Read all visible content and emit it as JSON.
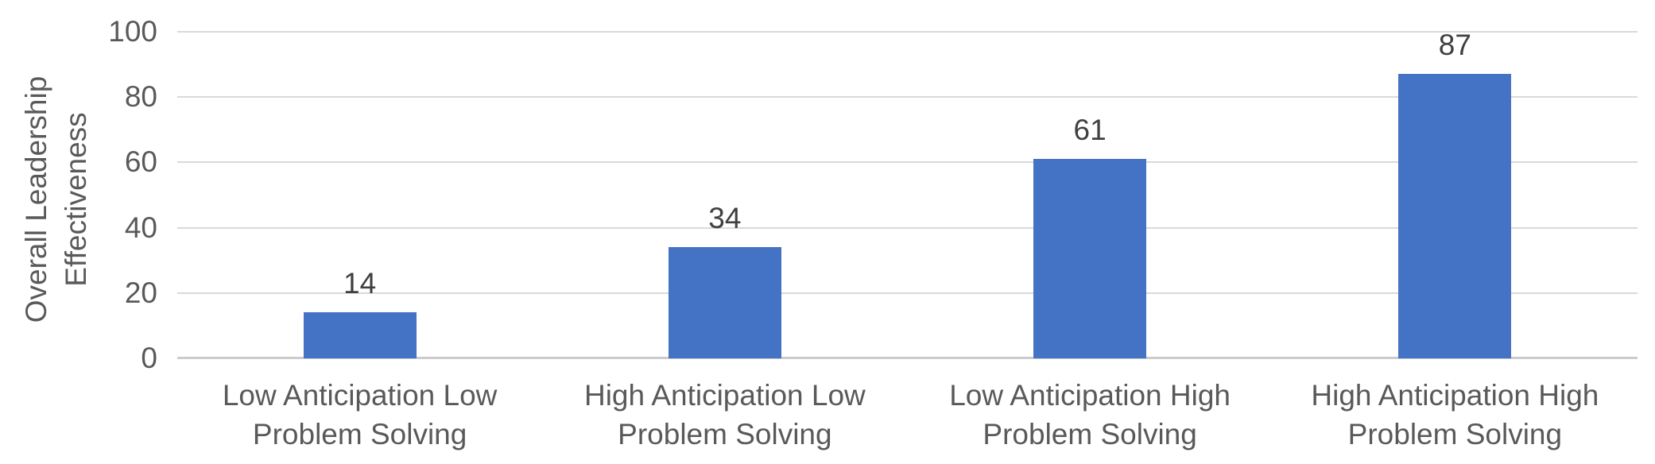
{
  "chart_data": {
    "type": "bar",
    "title": "",
    "xlabel": "",
    "ylabel": "Overall Leadership Effectiveness",
    "ylabel_lines": [
      "Overall Leadership",
      "Effectiveness"
    ],
    "categories": [
      "Low Anticipation Low Problem Solving",
      "High Anticipation Low Problem Solving",
      "Low Anticipation High Problem Solving",
      "High Anticipation High Problem Solving"
    ],
    "category_lines": [
      [
        "Low Anticipation Low",
        "Problem Solving"
      ],
      [
        "High Anticipation Low",
        "Problem Solving"
      ],
      [
        "Low Anticipation High",
        "Problem Solving"
      ],
      [
        "High Anticipation High",
        "Problem Solving"
      ]
    ],
    "values": [
      14,
      34,
      61,
      87
    ],
    "data_labels": [
      "14",
      "34",
      "61",
      "87"
    ],
    "ylim": [
      0,
      100
    ],
    "yticks": [
      0,
      20,
      40,
      60,
      80,
      100
    ],
    "grid": "horizontal",
    "legend": "none",
    "colors": {
      "bar": "#4472c4",
      "gridline": "#d9d9d9",
      "axis_line": "#cccccc",
      "tick_text": "#595959",
      "data_label_text": "#404040"
    }
  }
}
